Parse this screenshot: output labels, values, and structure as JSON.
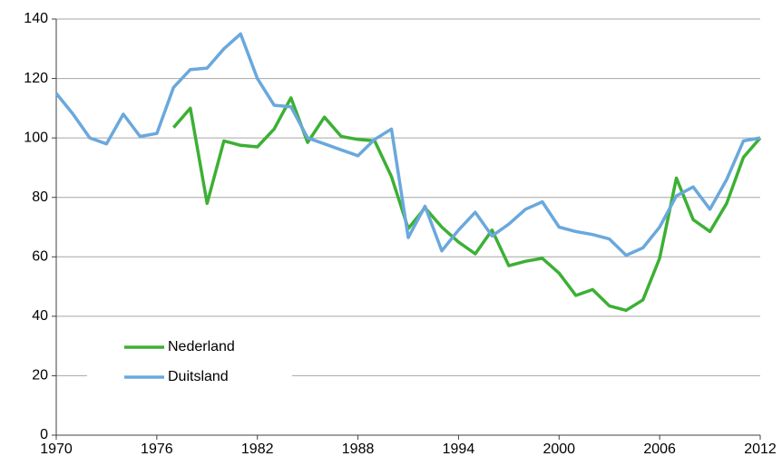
{
  "chart_data": {
    "type": "line",
    "x": [
      1970,
      1971,
      1972,
      1973,
      1974,
      1975,
      1976,
      1977,
      1978,
      1979,
      1980,
      1981,
      1982,
      1983,
      1984,
      1985,
      1986,
      1987,
      1988,
      1989,
      1990,
      1991,
      1992,
      1993,
      1994,
      1995,
      1996,
      1997,
      1998,
      1999,
      2000,
      2001,
      2002,
      2003,
      2004,
      2005,
      2006,
      2007,
      2008,
      2009,
      2010,
      2011,
      2012
    ],
    "series": [
      {
        "name": "Nederland",
        "color": "#3cb034",
        "values": [
          null,
          null,
          null,
          null,
          null,
          null,
          null,
          103.5,
          110,
          78,
          99,
          97.5,
          97,
          103,
          113.5,
          98.5,
          107,
          100.5,
          99.5,
          99,
          87,
          69.5,
          76.5,
          70,
          65,
          61,
          69,
          57,
          58.5,
          59.5,
          54.5,
          47,
          49,
          43.5,
          42,
          45.5,
          59.5,
          86.5,
          72.5,
          68.5,
          78,
          93.5,
          100
        ]
      },
      {
        "name": "Duitsland",
        "color": "#6aa8dc",
        "values": [
          115,
          108,
          100,
          98,
          108,
          100.5,
          101.5,
          117,
          123,
          123.5,
          130,
          135,
          120,
          111,
          110.5,
          100,
          98,
          96,
          94,
          99.5,
          103,
          66.5,
          77,
          62,
          69,
          75,
          67,
          71,
          76,
          78.5,
          70,
          68.5,
          67.5,
          66,
          60.5,
          63,
          70,
          80.5,
          83.5,
          76,
          86,
          99,
          100
        ]
      }
    ],
    "xlim": [
      1970,
      2012
    ],
    "xticks": [
      1970,
      1976,
      1982,
      1988,
      1994,
      2000,
      2006,
      2012
    ],
    "ylim": [
      0,
      140
    ],
    "yticks": [
      0,
      20,
      40,
      60,
      80,
      100,
      120,
      140
    ],
    "grid": true,
    "legend": "lower left"
  }
}
